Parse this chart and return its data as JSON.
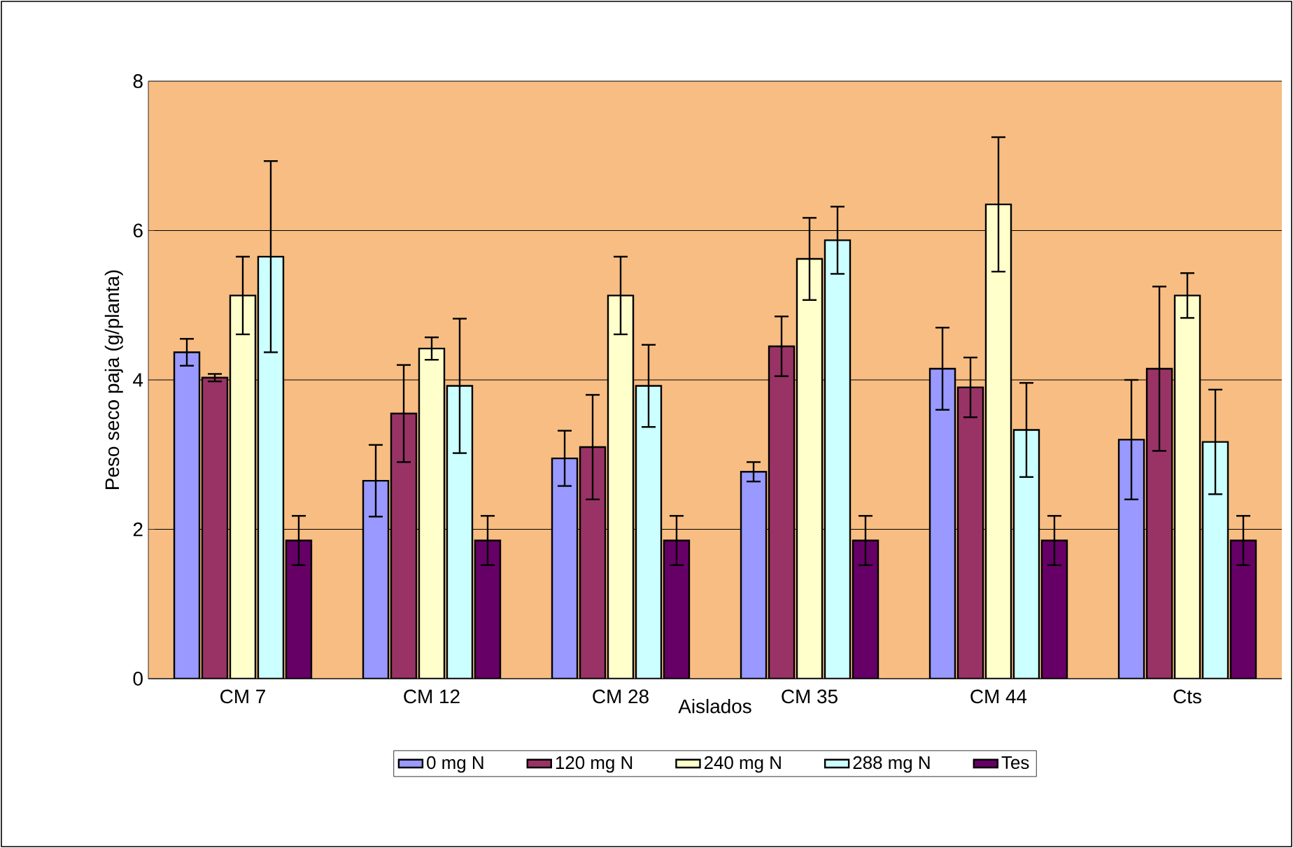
{
  "chart_data": {
    "type": "bar",
    "xlabel": "Aislados",
    "ylabel": "Peso seco paja (g/planta)",
    "categories": [
      "CM 7",
      "CM 12",
      "CM 28",
      "CM 35",
      "CM 44",
      "Cts"
    ],
    "ylim": [
      0,
      8
    ],
    "yticks": [
      0,
      2,
      4,
      6,
      8
    ],
    "grid": "y",
    "legend": "bottom",
    "series": [
      {
        "name": "0 mg N",
        "color": "#9999ff",
        "values": [
          4.37,
          2.65,
          2.95,
          2.77,
          4.15,
          3.2
        ],
        "errors": [
          0.18,
          0.48,
          0.37,
          0.13,
          0.55,
          0.8
        ]
      },
      {
        "name": "120 mg N",
        "color": "#993366",
        "values": [
          4.03,
          3.55,
          3.1,
          4.45,
          3.9,
          4.15
        ],
        "errors": [
          0.05,
          0.65,
          0.7,
          0.4,
          0.4,
          1.1
        ]
      },
      {
        "name": "240 mg N",
        "color": "#ffffcc",
        "values": [
          5.13,
          4.42,
          5.13,
          5.62,
          6.35,
          5.13
        ],
        "errors": [
          0.52,
          0.15,
          0.52,
          0.55,
          0.9,
          0.3
        ]
      },
      {
        "name": "288 mg N",
        "color": "#ccffff",
        "values": [
          5.65,
          3.92,
          3.92,
          5.87,
          3.33,
          3.17
        ],
        "errors": [
          1.28,
          0.9,
          0.55,
          0.45,
          0.63,
          0.7
        ]
      },
      {
        "name": "Tes",
        "color": "#660066",
        "values": [
          1.85,
          1.85,
          1.85,
          1.85,
          1.85,
          1.85
        ],
        "errors": [
          0.33,
          0.33,
          0.33,
          0.33,
          0.33,
          0.33
        ]
      }
    ]
  }
}
